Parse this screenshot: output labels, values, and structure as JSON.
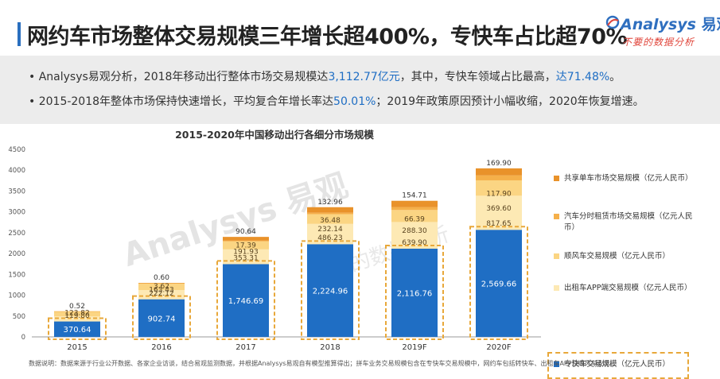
{
  "header": {
    "title": "网约车市场整体交易规模三年增长超400%，专快车占比超70%",
    "accent_color": "#2a6fbf"
  },
  "logo": {
    "brand_latin": "Analysys",
    "brand_cn": "易观",
    "slogan": "不要的数据分析"
  },
  "summary": {
    "line1_a": "Analysys易观分析，2018年移动出行整体市场交易规模达",
    "line1_hl1": "3,112.77亿元",
    "line1_b": "，其中，专快车领域占比最高，",
    "line1_hl2": "达71.48%",
    "line1_c": "。",
    "line2_a": "2015-2018年整体市场保持快速增长，平均复合年增长率达",
    "line2_hl": "50.01%",
    "line2_b": "；2019年政策原因预计小幅收缩，2020年恢复增速。"
  },
  "chart_data": {
    "type": "bar",
    "stacked": true,
    "title": "2015-2020年中国移动出行各细分市场规模",
    "categories": [
      "2015",
      "2016",
      "2017",
      "2018",
      "2019F",
      "2020F"
    ],
    "ylim": [
      0,
      4500
    ],
    "yticks": [
      0,
      500,
      1000,
      1500,
      2000,
      2500,
      3000,
      3500,
      4000,
      4500
    ],
    "grid": false,
    "legend_position": "right",
    "series": [
      {
        "name": "专快车交易规模（亿元人民币）",
        "color": "#1f6ec4",
        "labels": [
          "370.64",
          "902.74",
          "1,746.69",
          "2,224.96",
          "2,116.76",
          "2,569.66"
        ],
        "values": [
          370.64,
          902.74,
          1746.69,
          2224.96,
          2116.76,
          2569.66
        ]
      },
      {
        "name": "出租车APP端交易规模（亿元人民币）",
        "color": "#fde9b4",
        "labels": [
          "119.80",
          "222.12",
          "353.31",
          "486.23",
          "639.90",
          "817.65"
        ],
        "values": [
          119.8,
          222.12,
          353.31,
          486.23,
          639.9,
          817.65
        ]
      },
      {
        "name": "顺风车交易规模（亿元人民币）",
        "color": "#fbd583",
        "labels": [
          "123.82",
          "163.43",
          "191.93",
          "232.14",
          "288.30",
          "369.60"
        ],
        "values": [
          123.82,
          163.43,
          191.93,
          232.14,
          288.3,
          369.6
        ]
      },
      {
        "name": "汽车分时租赁市场交易规模（亿元人民币）",
        "color": "#f5b04a",
        "labels": [
          "0.52",
          "3.62",
          "17.39",
          "36.48",
          "66.39",
          "117.90"
        ],
        "values": [
          0.52,
          3.62,
          17.39,
          36.48,
          66.39,
          117.9
        ]
      },
      {
        "name": "共享单车市场交易规模（亿元人民币）",
        "color": "#e9922a",
        "labels": [
          "",
          "0.60",
          "90.64",
          "132.96",
          "154.71",
          "169.90"
        ],
        "values": [
          0,
          0.6,
          90.64,
          132.96,
          154.71,
          169.9
        ]
      }
    ],
    "legend_order": [
      4,
      3,
      2,
      1,
      0
    ],
    "highlighted_series": 0,
    "highlight_color": "#e8a83a"
  },
  "watermark": {
    "brand": "Analysys 易观",
    "slogan": "不要的数据分析"
  },
  "footnote": "数据说明：数据来源于行业公开数据、各家企业访谈，结合易观监测数据，并根据Analysys易观自有模型推算得出；拼车业务交易规模包含在专快车交易规模中，网约车包括转快车、出租车APP及顺风车业务。"
}
